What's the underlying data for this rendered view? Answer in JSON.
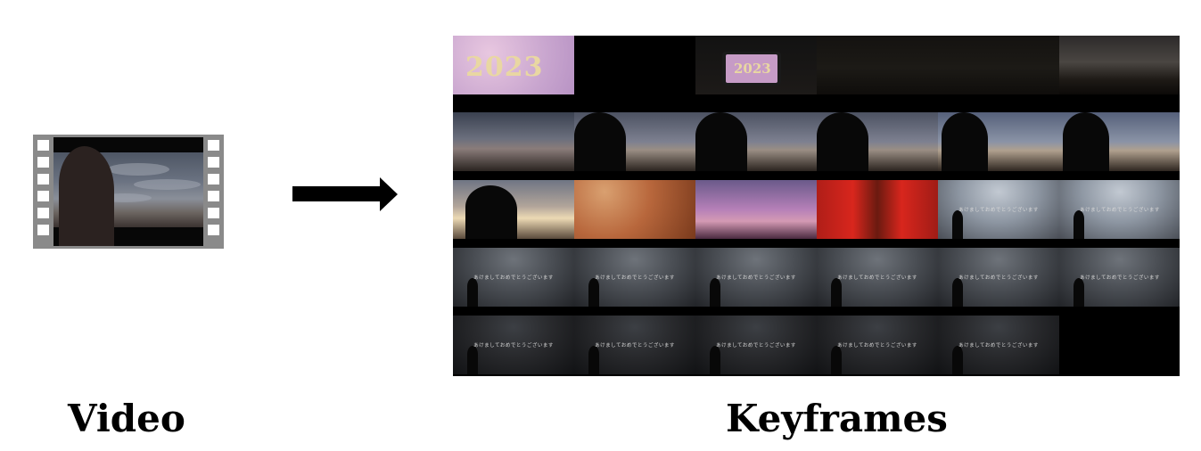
{
  "labels": {
    "video": "Video",
    "keyframes": "Keyframes"
  },
  "keyframes": {
    "rows": 5,
    "cols": 6,
    "cells": [
      {
        "scene": "new-year-2023-card",
        "text": "2023"
      },
      {
        "scene": "black"
      },
      {
        "scene": "phone-2023",
        "text": "2023"
      },
      {
        "scene": "dark-field"
      },
      {
        "scene": "dark-field"
      },
      {
        "scene": "dusk-field"
      },
      {
        "scene": "dusk-sky"
      },
      {
        "scene": "silhouette-left"
      },
      {
        "scene": "silhouette-left"
      },
      {
        "scene": "silhouette-left"
      },
      {
        "scene": "silhouette-mid"
      },
      {
        "scene": "silhouette-mid"
      },
      {
        "scene": "sunset-person"
      },
      {
        "scene": "orange-lens"
      },
      {
        "scene": "power-lines"
      },
      {
        "scene": "red-torii"
      },
      {
        "scene": "fisheye-sky",
        "text": "あけましておめでとうございます"
      },
      {
        "scene": "fisheye-sky",
        "text": "あけましておめでとうございます"
      },
      {
        "scene": "fisheye-dim",
        "text": "あけましておめでとうございます"
      },
      {
        "scene": "fisheye-dim",
        "text": "あけましておめでとうございます"
      },
      {
        "scene": "fisheye-dim",
        "text": "あけましておめでとうございます"
      },
      {
        "scene": "fisheye-dim",
        "text": "あけましておめでとうございます"
      },
      {
        "scene": "fisheye-dim",
        "text": "あけましておめでとうございます"
      },
      {
        "scene": "fisheye-dim",
        "text": "あけましておめでとうございます"
      },
      {
        "scene": "fisheye-dark",
        "text": "あけましておめでとうございます"
      },
      {
        "scene": "fisheye-dark",
        "text": "あけましておめでとうございます"
      },
      {
        "scene": "fisheye-dark",
        "text": "あけましておめでとうございます"
      },
      {
        "scene": "fisheye-dark",
        "text": "あけましておめでとうございます"
      },
      {
        "scene": "fisheye-dark",
        "text": "あけましておめでとうございます"
      },
      {
        "scene": "black"
      }
    ]
  },
  "colors": {
    "arrow": "#000000",
    "film_border": "#8a8a8a",
    "grid_background": "#000000"
  },
  "icons": {
    "video": "film-strip-icon",
    "arrow": "right-arrow-icon"
  }
}
